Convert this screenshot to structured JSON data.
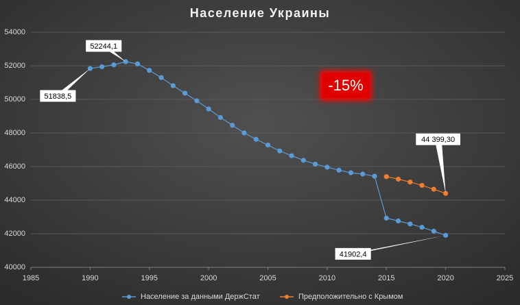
{
  "chart_data": {
    "type": "line",
    "title": "Население Украины",
    "annotation": "-15%",
    "xlim": [
      1985,
      2025
    ],
    "xticks": [
      1985,
      1990,
      1995,
      2000,
      2005,
      2010,
      2015,
      2020,
      2025
    ],
    "ylim": [
      40000,
      54000
    ],
    "yticks": [
      40000,
      42000,
      44000,
      46000,
      48000,
      50000,
      52000,
      54000
    ],
    "grid": true,
    "series": [
      {
        "name": "Население за данными ДержСтат",
        "color": "#5b9bd5",
        "x": [
          1990,
          1991,
          1992,
          1993,
          1994,
          1995,
          1996,
          1997,
          1998,
          1999,
          2000,
          2001,
          2002,
          2003,
          2004,
          2005,
          2006,
          2007,
          2008,
          2009,
          2010,
          2011,
          2012,
          2013,
          2014,
          2015,
          2016,
          2017,
          2018,
          2019,
          2020
        ],
        "values": [
          51838.5,
          51944,
          52057,
          52244.1,
          52114,
          51728,
          51300,
          50818,
          50370,
          49918,
          49430,
          48923,
          48457,
          48004,
          47622,
          47281,
          46930,
          46646,
          46373,
          46144,
          45963,
          45783,
          45633,
          45553,
          45426,
          42929,
          42760,
          42584,
          42386,
          42153,
          41902.4
        ],
        "value_labels": [
          "51838,5",
          null,
          null,
          "52244,1",
          null,
          null,
          null,
          null,
          null,
          null,
          null,
          null,
          null,
          null,
          null,
          null,
          null,
          null,
          null,
          null,
          null,
          null,
          null,
          null,
          null,
          null,
          null,
          null,
          null,
          null,
          "41902,4"
        ]
      },
      {
        "name": "Предположительно с Крымом",
        "color": "#ed7d31",
        "x": [
          2015,
          2016,
          2017,
          2018,
          2019,
          2020
        ],
        "values": [
          45400,
          45250,
          45080,
          44880,
          44650,
          44399.3
        ],
        "value_labels": [
          null,
          null,
          null,
          null,
          null,
          "44 399,30"
        ]
      }
    ]
  }
}
